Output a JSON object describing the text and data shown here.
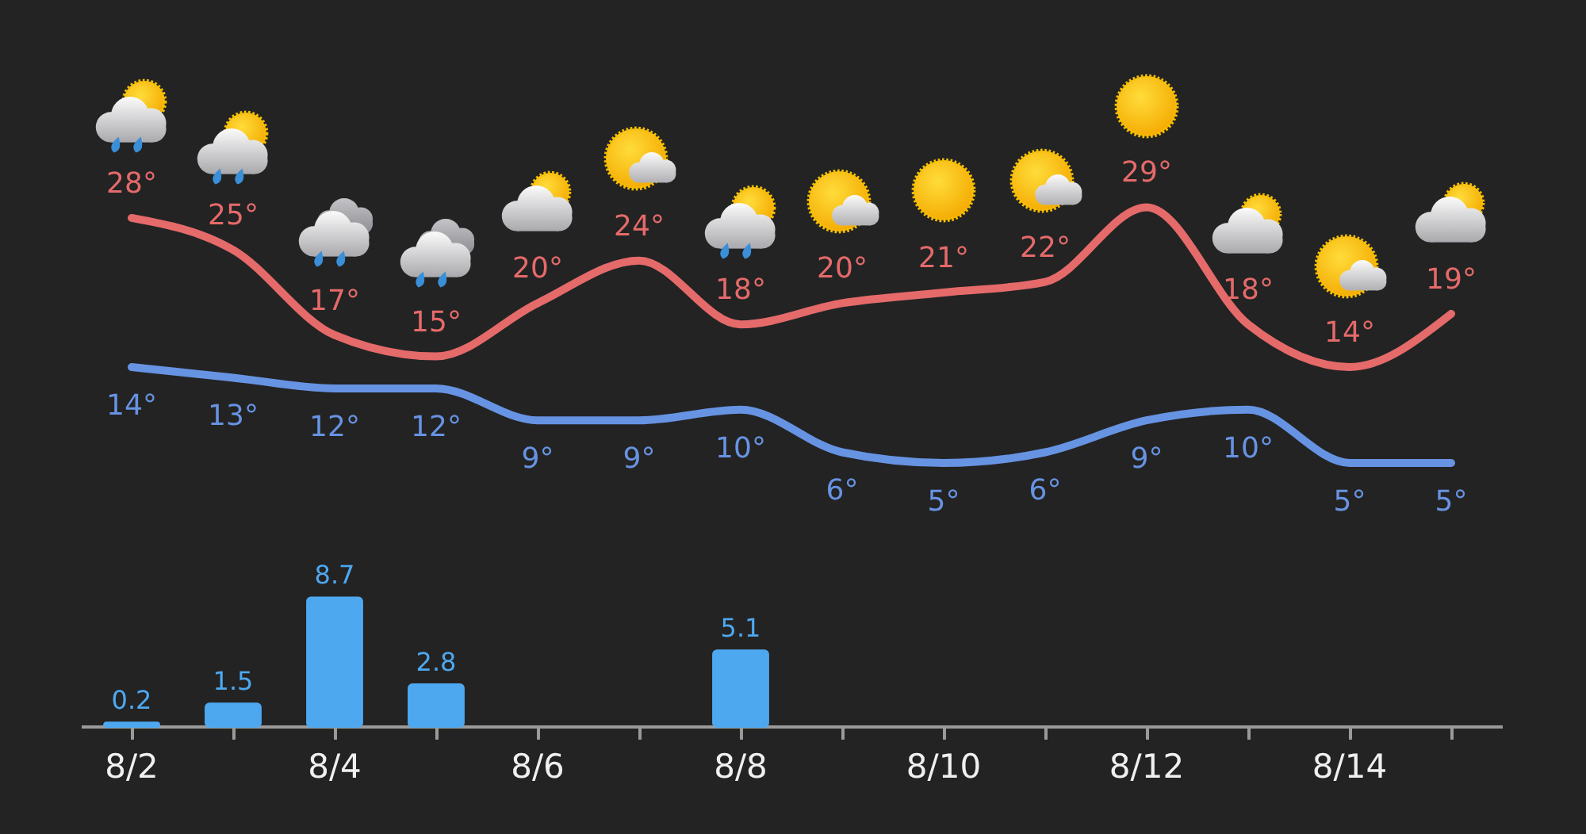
{
  "chart_data": [
    {
      "type": "line",
      "categories": [
        null,
        null,
        null,
        null,
        null,
        null,
        null,
        null,
        null,
        null,
        null,
        null,
        null,
        null
      ],
      "tick_labels": false,
      "line_style": "solid",
      "series": [
        {
          "color": "#e56a6a",
          "values": [
            28,
            25,
            17,
            15,
            20,
            24,
            18,
            20,
            21,
            22,
            29,
            18,
            14,
            19
          ],
          "value_labels": [
            "28°",
            "25°",
            "17°",
            "15°",
            "20°",
            "24°",
            "18°",
            "20°",
            "21°",
            "22°",
            "29°",
            "18°",
            "14°",
            "19°"
          ]
        },
        {
          "color": "#6793e3",
          "values": [
            14,
            13,
            12,
            12,
            9,
            9,
            10,
            6,
            5,
            6,
            9,
            10,
            5,
            5
          ],
          "value_labels": [
            "14°",
            "13°",
            "12°",
            "12°",
            "9°",
            "9°",
            "10°",
            "6°",
            "5°",
            "6°",
            "9°",
            "10°",
            "5°",
            "5°"
          ]
        }
      ]
    },
    {
      "type": "bar",
      "categories": [
        "8/2",
        null,
        "8/4",
        null,
        "8/6",
        null,
        "8/8",
        null,
        "8/10",
        null,
        "8/12",
        null,
        "8/14",
        null
      ],
      "color": "#4ea8f0",
      "values": [
        0.2,
        1.5,
        8.7,
        2.8,
        null,
        null,
        5.1,
        null,
        null,
        null,
        null,
        null,
        null,
        null
      ],
      "value_labels": [
        "0.2",
        "1.5",
        "8.7",
        "2.8",
        null,
        null,
        "5.1",
        null,
        null,
        null,
        null,
        null,
        null,
        null
      ]
    }
  ]
}
